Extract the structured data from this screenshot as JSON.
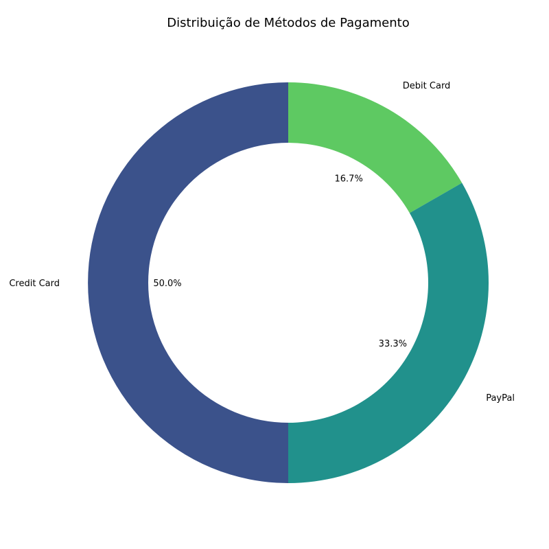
{
  "chart_data": {
    "type": "pie",
    "variant": "donut",
    "title": "Distribuição de Métodos de Pagamento",
    "start_angle_deg": 90,
    "direction": "clockwise",
    "slices": [
      {
        "label": "Debit Card",
        "value": 16.7,
        "pct_label": "16.7%",
        "color": "#5ec962"
      },
      {
        "label": "PayPal",
        "value": 33.3,
        "pct_label": "33.3%",
        "color": "#21918c"
      },
      {
        "label": "Credit Card",
        "value": 50.0,
        "pct_label": "50.0%",
        "color": "#3b528b"
      }
    ],
    "legend": "none"
  }
}
